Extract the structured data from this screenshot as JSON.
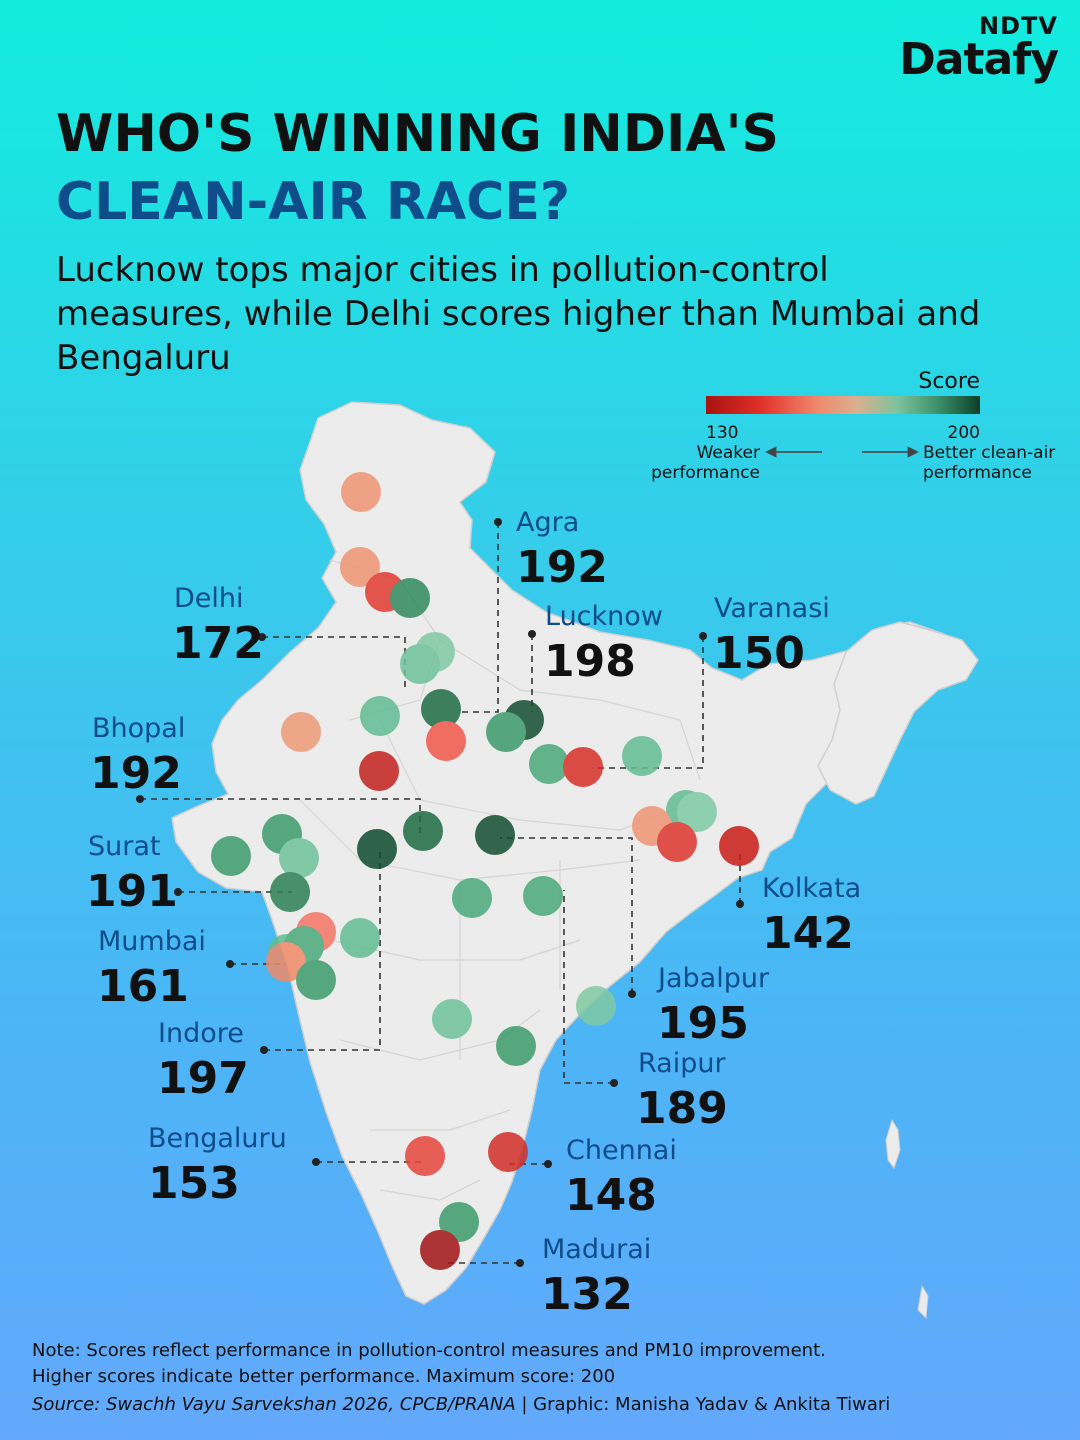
{
  "brand": {
    "top": "NDTV",
    "main": "Datafy"
  },
  "title": {
    "line1": "WHO'S WINNING INDIA'S",
    "line2": "CLEAN-AIR RACE?"
  },
  "subtitle": "Lucknow tops major cities in pollution-control measures, while Delhi scores higher than Mumbai and Bengaluru",
  "legend": {
    "title": "Score",
    "min": "130",
    "max": "200",
    "low_label": [
      "Weaker",
      "performance"
    ],
    "high_label": [
      "Better clean-air",
      "performance"
    ],
    "colors": [
      "#b01818",
      "#e2352a",
      "#f37b60",
      "#e9a07e",
      "#6fc7a1",
      "#3f9a72",
      "#0b4a2e"
    ]
  },
  "cities": [
    {
      "name": "Agra",
      "score": "192"
    },
    {
      "name": "Delhi",
      "score": "172"
    },
    {
      "name": "Lucknow",
      "score": "198"
    },
    {
      "name": "Varanasi",
      "score": "150"
    },
    {
      "name": "Bhopal",
      "score": "192"
    },
    {
      "name": "Surat",
      "score": "191"
    },
    {
      "name": "Kolkata",
      "score": "142"
    },
    {
      "name": "Mumbai",
      "score": "161"
    },
    {
      "name": "Jabalpur",
      "score": "195"
    },
    {
      "name": "Indore",
      "score": "197"
    },
    {
      "name": "Raipur",
      "score": "189"
    },
    {
      "name": "Bengaluru",
      "score": "153"
    },
    {
      "name": "Chennai",
      "score": "148"
    },
    {
      "name": "Madurai",
      "score": "132"
    }
  ],
  "note": {
    "line1": "Note: Scores reflect performance in pollution-control measures and PM10 improvement.",
    "line2": "Higher scores indicate better performance. Maximum score: 200"
  },
  "source": {
    "label": "Source: Swachh Vayu Sarvekshan 2026, CPCB/PRANA",
    "credit": " | Graphic: Manisha Yadav & Ankita Tiwari"
  }
}
